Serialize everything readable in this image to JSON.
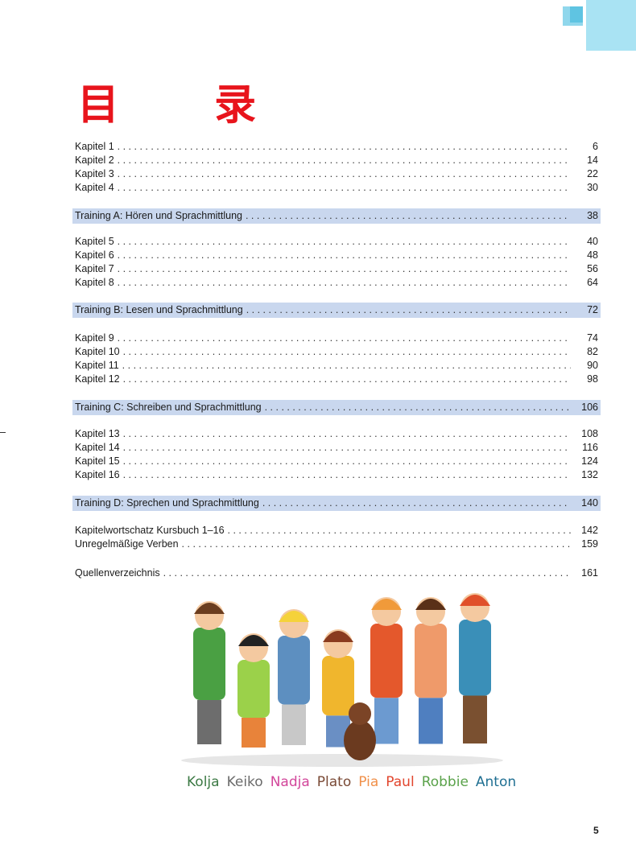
{
  "title": "目 录",
  "toc": {
    "group1": [
      {
        "label": "Kapitel 1",
        "page": "6"
      },
      {
        "label": "Kapitel 2",
        "page": "14"
      },
      {
        "label": "Kapitel 3",
        "page": "22"
      },
      {
        "label": "Kapitel 4",
        "page": "30"
      }
    ],
    "trainingA": {
      "label": "Training A: Hören und Sprachmittlung",
      "page": "38"
    },
    "group2": [
      {
        "label": "Kapitel 5",
        "page": "40"
      },
      {
        "label": "Kapitel 6",
        "page": "48"
      },
      {
        "label": "Kapitel 7",
        "page": "56"
      },
      {
        "label": "Kapitel 8",
        "page": "64"
      }
    ],
    "trainingB": {
      "label": "Training B: Lesen und Sprachmittlung",
      "page": "72"
    },
    "group3": [
      {
        "label": "Kapitel 9",
        "page": "74"
      },
      {
        "label": "Kapitel 10",
        "page": "82"
      },
      {
        "label": "Kapitel 11",
        "page": "90"
      },
      {
        "label": "Kapitel 12",
        "page": "98"
      }
    ],
    "trainingC": {
      "label": "Training C: Schreiben und Sprachmittlung",
      "page": "106"
    },
    "group4": [
      {
        "label": "Kapitel 13",
        "page": "108"
      },
      {
        "label": "Kapitel 14",
        "page": "116"
      },
      {
        "label": "Kapitel 15",
        "page": "124"
      },
      {
        "label": "Kapitel 16",
        "page": "132"
      }
    ],
    "trainingD": {
      "label": "Training D: Sprechen und Sprachmittlung",
      "page": "140"
    },
    "appendix": [
      {
        "label": "Kapitelwortschatz Kursbuch 1–16",
        "page": "142"
      },
      {
        "label": "Unregelmäßige Verben",
        "page": "159"
      }
    ],
    "sources": {
      "label": "Quellenverzeichnis",
      "page": "161"
    }
  },
  "characters": [
    {
      "name": "Kolja",
      "color": "#3d7a45"
    },
    {
      "name": "Keiko",
      "color": "#6b6b6b"
    },
    {
      "name": "Nadja",
      "color": "#d2469a"
    },
    {
      "name": "Plato",
      "color": "#7a4a36"
    },
    {
      "name": "Pia",
      "color": "#f0904a"
    },
    {
      "name": "Paul",
      "color": "#e2452d"
    },
    {
      "name": "Robbie",
      "color": "#5aa24a"
    },
    {
      "name": "Anton",
      "color": "#1f6f92"
    }
  ],
  "page_number": "5",
  "colors": {
    "title": "#e8141c",
    "band": "#c9d7ee",
    "decoration": "#a9e3f3"
  }
}
